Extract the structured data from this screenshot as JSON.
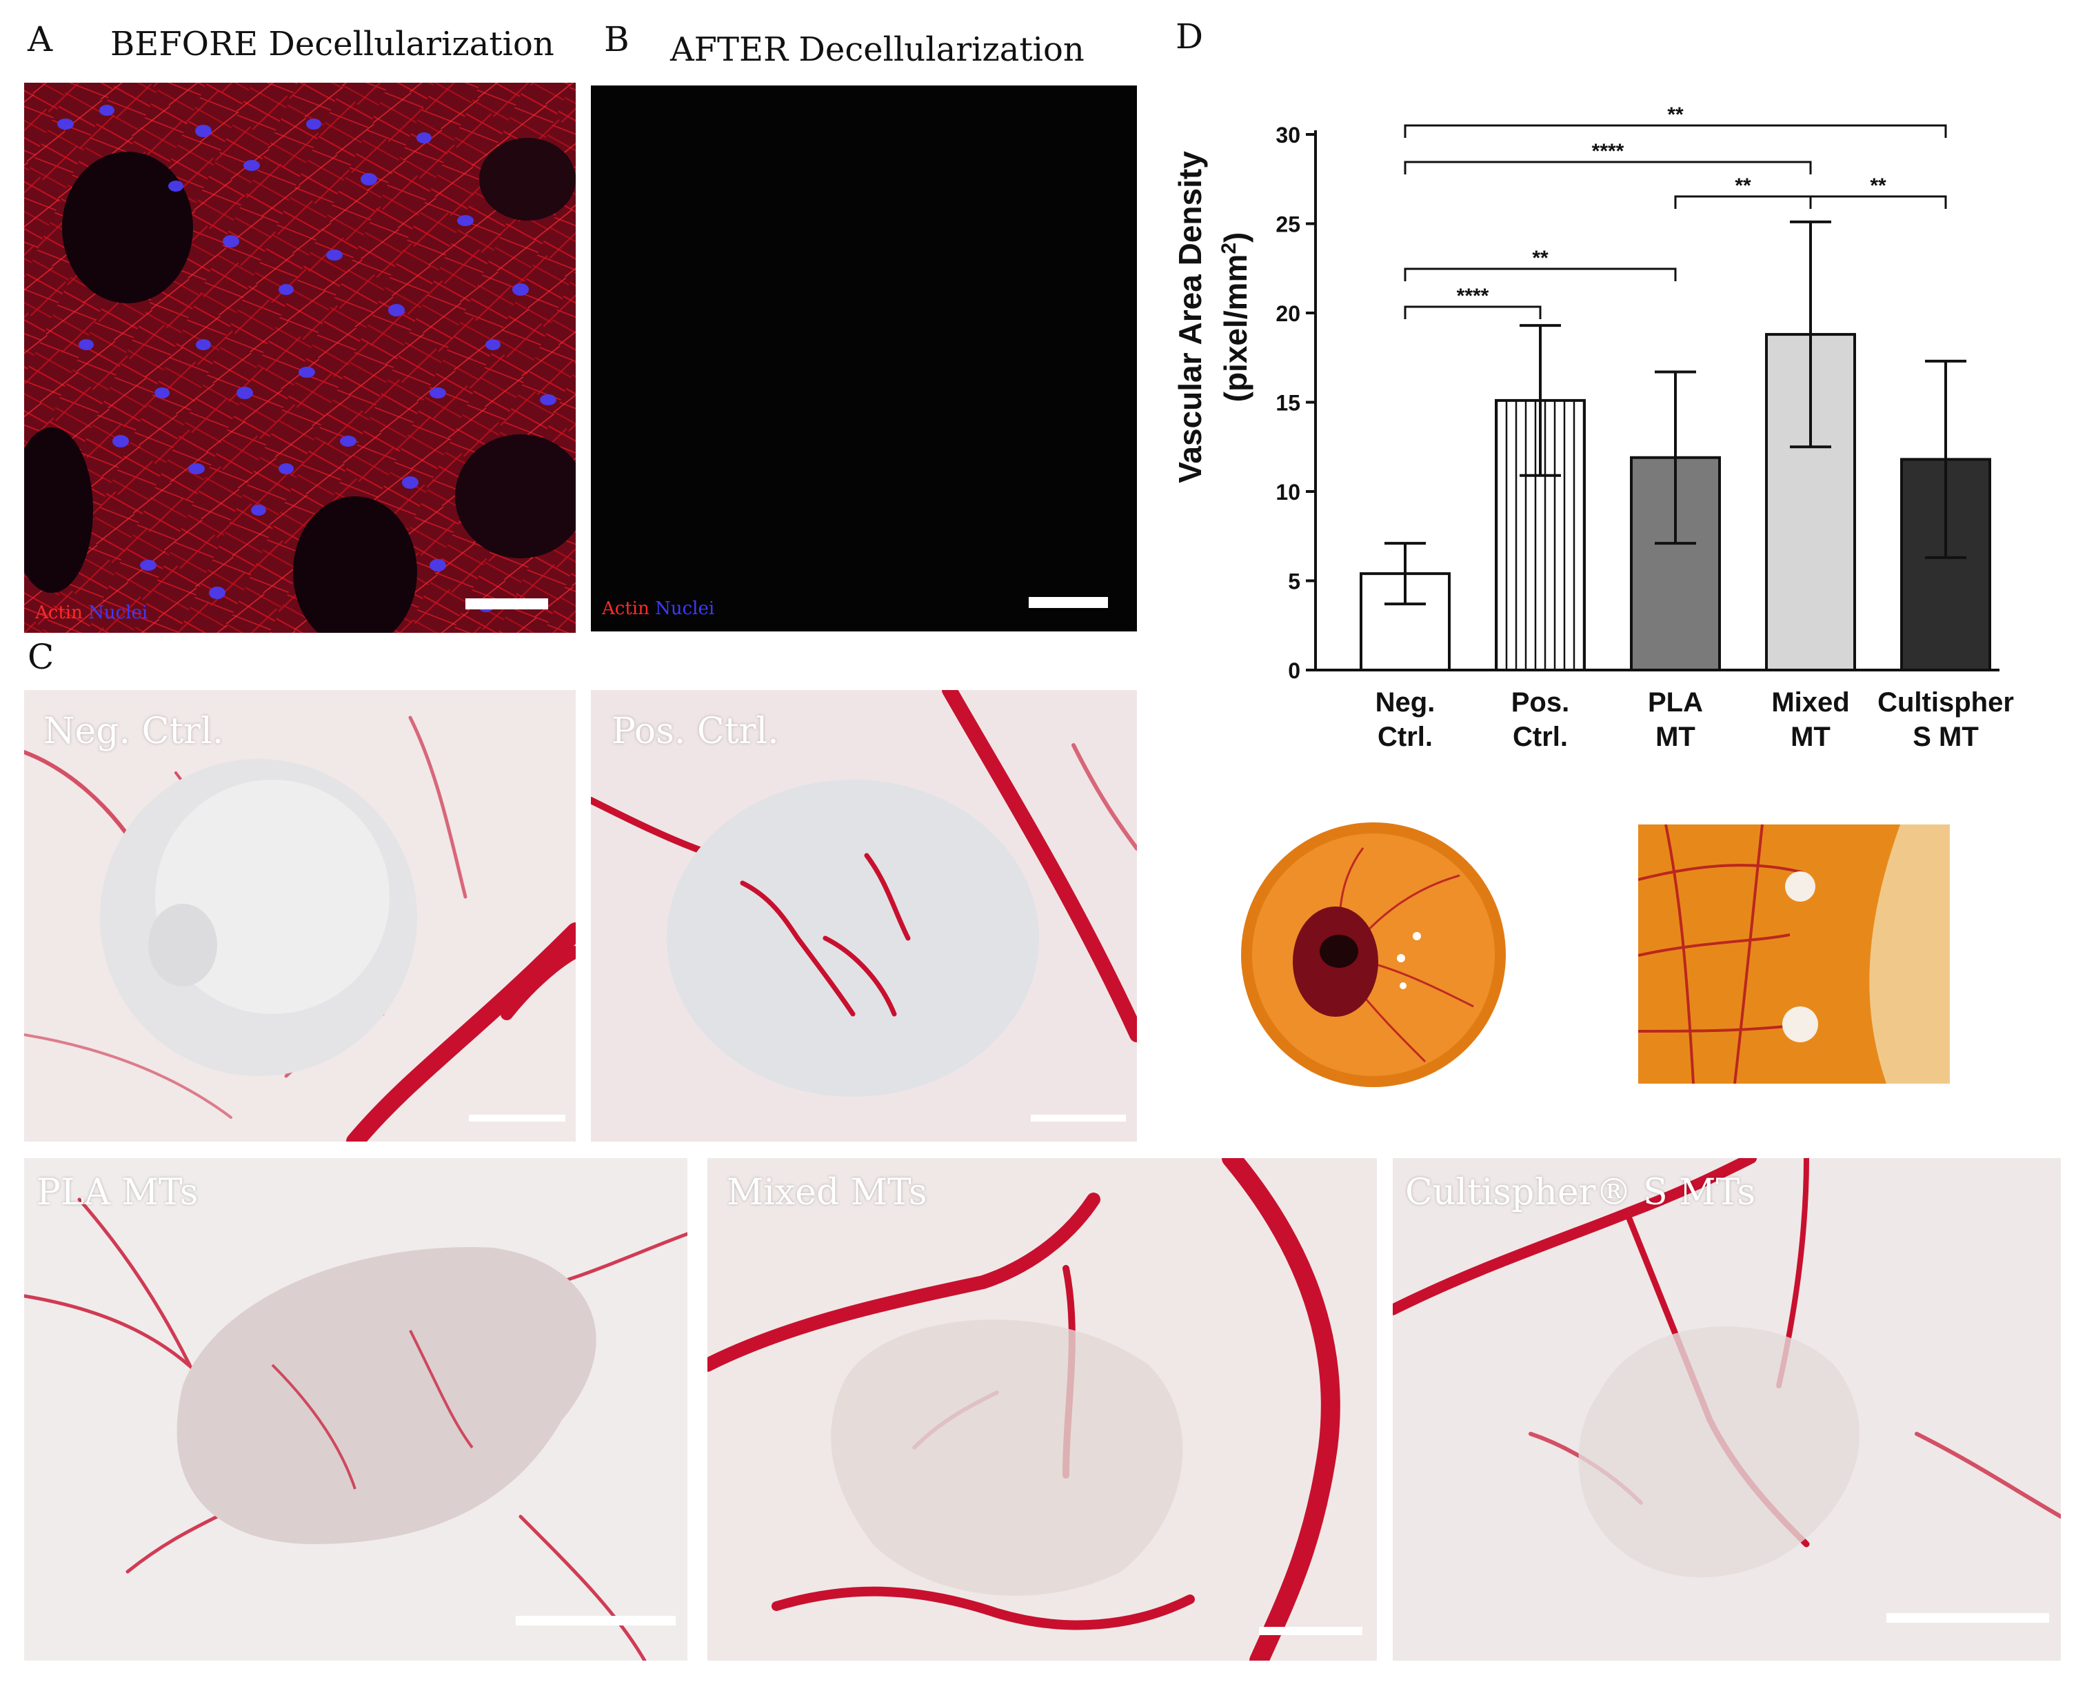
{
  "panels": {
    "a": {
      "letter": "A",
      "title": "BEFORE Decellularization",
      "stain_actin": "Actin",
      "stain_nuclei": "Nuclei"
    },
    "b": {
      "letter": "B",
      "title": "AFTER Decellularization",
      "stain_actin": "Actin",
      "stain_nuclei": "Nuclei"
    },
    "c": {
      "letter": "C",
      "photos": [
        {
          "label": "Neg. Ctrl."
        },
        {
          "label": "Pos. Ctrl."
        },
        {
          "label": "PLA MTs"
        },
        {
          "label": "Mixed MTs"
        },
        {
          "label": "Cultispher® S MTs"
        }
      ]
    },
    "d": {
      "letter": "D"
    }
  },
  "colors": {
    "actin": "#ff2b2b",
    "nuclei": "#3b3bff",
    "vessel": "#c8102e",
    "membrane": "#efe6e6",
    "egg_orange": "#e0801a"
  },
  "chart_data": {
    "type": "bar",
    "ylabel_line1": "Vascular Area Density",
    "ylabel_line2": "(pixel/mm",
    "ylabel_sup": "2",
    "ylabel_close": ")",
    "ylim": [
      0,
      30
    ],
    "yticks": [
      0,
      5,
      10,
      15,
      20,
      25,
      30
    ],
    "categories": [
      {
        "line1": "Neg.",
        "line2": "Ctrl."
      },
      {
        "line1": "Pos.",
        "line2": "Ctrl."
      },
      {
        "line1": "PLA",
        "line2": "MT"
      },
      {
        "line1": "Mixed",
        "line2": "MT"
      },
      {
        "line1": "Cultispher",
        "line2": "S MT"
      }
    ],
    "values": [
      5.4,
      15.1,
      11.9,
      18.8,
      11.8
    ],
    "errors": [
      1.7,
      4.2,
      4.8,
      6.3,
      5.5
    ],
    "bar_styles": [
      "white",
      "vertical-hatch",
      "gray",
      "lightgray",
      "dark"
    ],
    "bar_colors": [
      "#ffffff",
      "#ffffff",
      "#7a7a7a",
      "#d6d6d6",
      "#2e2e2e"
    ],
    "significance": [
      {
        "from": 0,
        "to": 4,
        "label": "**",
        "level": 4
      },
      {
        "from": 0,
        "to": 3,
        "label": "****",
        "level": 3
      },
      {
        "from": 2,
        "to": 3,
        "label": "**",
        "level": 2
      },
      {
        "from": 3,
        "to": 4,
        "label": "**",
        "level": 2
      },
      {
        "from": 0,
        "to": 2,
        "label": "**",
        "level": 1
      },
      {
        "from": 0,
        "to": 1,
        "label": "****",
        "level": 0
      }
    ]
  }
}
